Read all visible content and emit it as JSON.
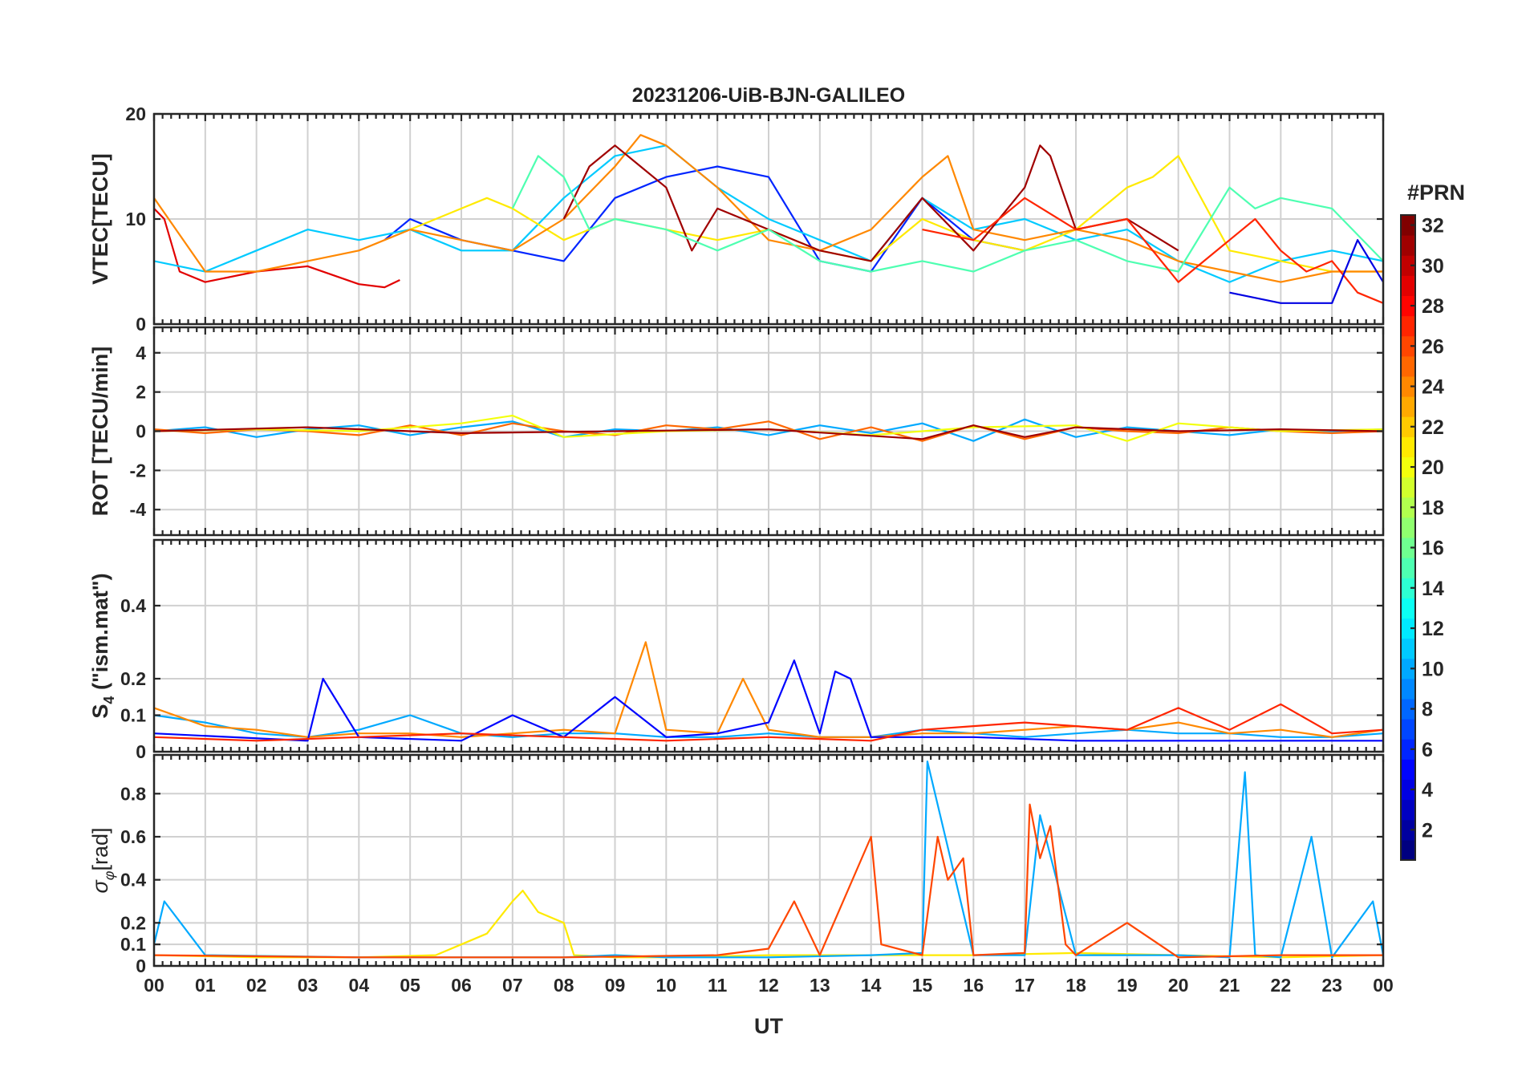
{
  "chart_data": {
    "type": "line",
    "title": "20231206-UiB-BJN-GALILEO",
    "xlabel": "UT",
    "x_ticks": [
      "00",
      "01",
      "02",
      "03",
      "04",
      "05",
      "06",
      "07",
      "08",
      "09",
      "10",
      "11",
      "12",
      "13",
      "14",
      "15",
      "16",
      "17",
      "18",
      "19",
      "20",
      "21",
      "22",
      "23",
      "00"
    ],
    "xlim": [
      0,
      24
    ],
    "panels": [
      {
        "id": "vtec",
        "ylabel": "VTEC[TECU]",
        "ylim": [
          0,
          20
        ],
        "y_ticks": [
          0,
          10,
          20
        ],
        "y_tick_labels": [
          "0",
          "10",
          "20"
        ],
        "series": [
          {
            "prn": 29,
            "x": [
              0,
              0.2,
              0.5,
              1,
              2,
              3,
              4,
              4.5,
              4.8
            ],
            "y": [
              11,
              10,
              5,
              4,
              5,
              5.5,
              3.8,
              3.5,
              4.2
            ]
          },
          {
            "prn": 6,
            "x": [
              4.5,
              5,
              6,
              7,
              8,
              9,
              10,
              11,
              12,
              13,
              14,
              15,
              16,
              17
            ],
            "y": [
              8,
              10,
              8,
              7,
              6,
              12,
              14,
              15,
              14,
              6,
              5,
              12,
              8,
              7
            ]
          },
          {
            "prn": 11,
            "x": [
              0,
              1,
              2,
              3,
              4,
              5,
              6,
              7,
              8,
              9,
              10,
              11,
              12,
              13,
              14,
              15,
              16,
              17,
              18,
              19,
              20,
              21,
              22,
              23,
              24
            ],
            "y": [
              6,
              5,
              7,
              9,
              8,
              9,
              7,
              7,
              12,
              16,
              17,
              13,
              10,
              8,
              6,
              12,
              9,
              10,
              8,
              9,
              6,
              4,
              6,
              7,
              6
            ]
          },
          {
            "prn": 21,
            "x": [
              5,
              5.5,
              6,
              6.5,
              7,
              8,
              9,
              10,
              11,
              12,
              13,
              14,
              15,
              16,
              17,
              18,
              19,
              19.5,
              20,
              21,
              22,
              23,
              24
            ],
            "y": [
              9,
              10,
              11,
              12,
              11,
              8,
              10,
              9,
              8,
              9,
              7,
              6,
              10,
              8,
              7,
              9,
              13,
              14,
              16,
              7,
              6,
              5,
              5
            ]
          },
          {
            "prn": 24,
            "x": [
              0,
              1,
              2,
              3,
              4,
              5,
              6,
              7,
              8,
              9,
              9.5,
              10,
              11,
              12,
              13,
              14,
              15,
              15.5,
              16,
              17,
              18,
              19,
              20,
              21,
              22,
              23,
              24
            ],
            "y": [
              12,
              5,
              5,
              6,
              7,
              9,
              8,
              7,
              10,
              15,
              18,
              17,
              13,
              8,
              7,
              9,
              14,
              16,
              9,
              8,
              9,
              8,
              6,
              5,
              4,
              5,
              5
            ]
          },
          {
            "prn": 31,
            "x": [
              8,
              8.5,
              9,
              9.5,
              10,
              10.5,
              11,
              12,
              13,
              14,
              15,
              16,
              17,
              17.3,
              17.5,
              18,
              19,
              20
            ],
            "y": [
              10,
              15,
              17,
              15,
              13,
              7,
              11,
              9,
              7,
              6,
              12,
              7,
              13,
              17,
              16,
              9,
              10,
              7
            ]
          },
          {
            "prn": 15,
            "x": [
              7,
              7.5,
              8,
              8.5,
              9,
              10,
              11,
              12,
              13,
              14,
              15,
              16,
              17,
              18,
              19,
              20,
              21,
              21.5,
              22,
              23,
              24
            ],
            "y": [
              11,
              16,
              14,
              9,
              10,
              9,
              7,
              9,
              6,
              5,
              6,
              5,
              7,
              8,
              6,
              5,
              13,
              11,
              12,
              11,
              6
            ]
          },
          {
            "prn": 27,
            "x": [
              15,
              16,
              17,
              18,
              19,
              20,
              21,
              21.5,
              22,
              22.5,
              23,
              23.5,
              24
            ],
            "y": [
              9,
              8,
              12,
              9,
              10,
              4,
              8,
              10,
              7,
              5,
              6,
              3,
              2
            ]
          },
          {
            "prn": 4,
            "x": [
              21,
              22,
              23,
              23.5,
              24
            ],
            "y": [
              3,
              2,
              2,
              8,
              4
            ]
          }
        ]
      },
      {
        "id": "rot",
        "ylabel": "ROT [TECU/min]",
        "ylim": [
          -5.3,
          5.3
        ],
        "y_ticks": [
          -4,
          -2,
          0,
          2,
          4
        ],
        "y_tick_labels": [
          "-4",
          "-2",
          "0",
          "2",
          "4"
        ],
        "series": [
          {
            "prn": 10,
            "x": [
              0,
              1,
              2,
              3,
              4,
              5,
              6,
              7,
              8,
              9,
              10,
              11,
              12,
              13,
              14,
              15,
              16,
              17,
              18,
              19,
              20,
              21,
              22,
              23,
              24
            ],
            "y": [
              0,
              0.2,
              -0.3,
              0.1,
              0.3,
              -0.2,
              0.2,
              0.5,
              -0.3,
              0.1,
              0,
              0.2,
              -0.2,
              0.3,
              -0.1,
              0.4,
              -0.5,
              0.6,
              -0.3,
              0.2,
              0,
              -0.2,
              0.1,
              0,
              0.1
            ]
          },
          {
            "prn": 25,
            "x": [
              0,
              1,
              2,
              3,
              4,
              5,
              6,
              7,
              8,
              9,
              10,
              11,
              12,
              13,
              14,
              15,
              16,
              17,
              18,
              19,
              20,
              21,
              22,
              23,
              24
            ],
            "y": [
              0.1,
              -0.1,
              0.1,
              0,
              -0.2,
              0.3,
              -0.2,
              0.4,
              0,
              -0.2,
              0.3,
              0.1,
              0.5,
              -0.4,
              0.2,
              -0.5,
              0.3,
              -0.4,
              0.2,
              0,
              -0.1,
              0.2,
              0,
              -0.1,
              0
            ]
          },
          {
            "prn": 20,
            "x": [
              0,
              2,
              4,
              6,
              7,
              8,
              10,
              12,
              14,
              16,
              18,
              19,
              20,
              22,
              24
            ],
            "y": [
              0,
              0.1,
              0,
              0.4,
              0.8,
              -0.3,
              0,
              0.1,
              -0.2,
              0.2,
              0.3,
              -0.5,
              0.4,
              0,
              0.1
            ]
          },
          {
            "prn": 31,
            "x": [
              0,
              3,
              6,
              9,
              12,
              15,
              16,
              17,
              18,
              20,
              22,
              24
            ],
            "y": [
              0,
              0.2,
              -0.1,
              0,
              0.1,
              -0.4,
              0.3,
              -0.3,
              0.2,
              0,
              0.1,
              0
            ]
          }
        ]
      },
      {
        "id": "s4",
        "ylabel": "S4 (\"ism.mat\")",
        "ylim": [
          0,
          0.58
        ],
        "y_ticks": [
          0,
          0.1,
          0.2,
          0.4
        ],
        "y_tick_labels": [
          "0",
          "0.1",
          "0.2",
          "0.4"
        ],
        "series": [
          {
            "prn": 10,
            "x": [
              0,
              1,
              2,
              3,
              4,
              5,
              6,
              7,
              8,
              9,
              10,
              11,
              12,
              13,
              14,
              15,
              16,
              17,
              18,
              19,
              20,
              21,
              22,
              23,
              24
            ],
            "y": [
              0.1,
              0.08,
              0.05,
              0.04,
              0.06,
              0.1,
              0.05,
              0.04,
              0.05,
              0.05,
              0.04,
              0.04,
              0.05,
              0.04,
              0.04,
              0.06,
              0.05,
              0.04,
              0.05,
              0.06,
              0.05,
              0.05,
              0.04,
              0.04,
              0.05
            ]
          },
          {
            "prn": 24,
            "x": [
              0,
              1,
              2,
              3,
              4,
              5,
              6,
              7,
              8,
              9,
              9.6,
              10,
              11,
              11.5,
              12,
              13,
              14,
              15,
              16,
              17,
              18,
              19,
              20,
              21,
              22,
              23,
              24
            ],
            "y": [
              0.12,
              0.07,
              0.06,
              0.04,
              0.05,
              0.05,
              0.04,
              0.05,
              0.06,
              0.05,
              0.3,
              0.06,
              0.05,
              0.2,
              0.06,
              0.04,
              0.04,
              0.05,
              0.05,
              0.06,
              0.07,
              0.06,
              0.08,
              0.05,
              0.06,
              0.04,
              0.06
            ]
          },
          {
            "prn": 5,
            "x": [
              0,
              3,
              3.3,
              4,
              6,
              7,
              8,
              9,
              10,
              11,
              12,
              12.5,
              13,
              13.3,
              13.6,
              14,
              16,
              18,
              20,
              22,
              24
            ],
            "y": [
              0.05,
              0.03,
              0.2,
              0.04,
              0.03,
              0.1,
              0.04,
              0.15,
              0.04,
              0.05,
              0.08,
              0.25,
              0.05,
              0.22,
              0.2,
              0.04,
              0.04,
              0.03,
              0.03,
              0.03,
              0.03
            ]
          },
          {
            "prn": 27,
            "x": [
              0,
              2,
              4,
              6,
              8,
              10,
              12,
              14,
              15,
              16,
              17,
              18,
              19,
              20,
              21,
              22,
              23,
              24
            ],
            "y": [
              0.04,
              0.03,
              0.04,
              0.05,
              0.04,
              0.03,
              0.04,
              0.03,
              0.06,
              0.07,
              0.08,
              0.07,
              0.06,
              0.12,
              0.06,
              0.13,
              0.05,
              0.06
            ]
          }
        ]
      },
      {
        "id": "sigma",
        "ylabel": "σφ[rad]",
        "ylim": [
          0,
          0.98
        ],
        "y_ticks": [
          0,
          0.1,
          0.2,
          0.4,
          0.6,
          0.8
        ],
        "y_tick_labels": [
          "0",
          "0.1",
          "0.2",
          "0.4",
          "0.6",
          "0.8"
        ],
        "series": [
          {
            "prn": 21,
            "x": [
              0,
              2,
              4,
              5.5,
              6,
              6.5,
              7,
              7.2,
              7.5,
              8,
              8.2,
              9,
              10,
              12,
              14,
              16,
              18,
              20,
              22,
              24
            ],
            "y": [
              0.05,
              0.04,
              0.04,
              0.05,
              0.1,
              0.15,
              0.3,
              0.35,
              0.25,
              0.2,
              0.05,
              0.04,
              0.04,
              0.05,
              0.05,
              0.05,
              0.06,
              0.05,
              0.04,
              0.05
            ]
          },
          {
            "prn": 10,
            "x": [
              0,
              0.2,
              1,
              4,
              8,
              9,
              10,
              12,
              14,
              15,
              15.1,
              16,
              17,
              17.3,
              18,
              20,
              21,
              21.3,
              21.5,
              22,
              22.6,
              23,
              23.8,
              24
            ],
            "y": [
              0.1,
              0.3,
              0.05,
              0.04,
              0.04,
              0.05,
              0.04,
              0.04,
              0.05,
              0.06,
              0.95,
              0.05,
              0.05,
              0.7,
              0.05,
              0.05,
              0.04,
              0.9,
              0.05,
              0.04,
              0.6,
              0.04,
              0.3,
              0.05
            ]
          },
          {
            "prn": 26,
            "x": [
              0,
              4,
              8,
              11,
              12,
              12.5,
              13,
              14,
              14.2,
              15,
              15.3,
              15.5,
              15.8,
              16,
              17,
              17.1,
              17.3,
              17.5,
              17.8,
              18,
              19,
              20,
              22,
              24
            ],
            "y": [
              0.05,
              0.04,
              0.04,
              0.05,
              0.08,
              0.3,
              0.05,
              0.6,
              0.1,
              0.05,
              0.6,
              0.4,
              0.5,
              0.05,
              0.06,
              0.75,
              0.5,
              0.65,
              0.1,
              0.05,
              0.2,
              0.04,
              0.05,
              0.05
            ]
          }
        ]
      }
    ],
    "colorbar": {
      "label": "#PRN",
      "range": [
        1,
        32
      ],
      "ticks": [
        2,
        4,
        6,
        8,
        10,
        12,
        14,
        16,
        18,
        20,
        22,
        24,
        26,
        28,
        30,
        32
      ],
      "tick_labels": [
        "2",
        "4",
        "6",
        "8",
        "10",
        "12",
        "14",
        "16",
        "18",
        "20",
        "22",
        "24",
        "26",
        "28",
        "30",
        "32"
      ],
      "colormap": "jet"
    }
  }
}
